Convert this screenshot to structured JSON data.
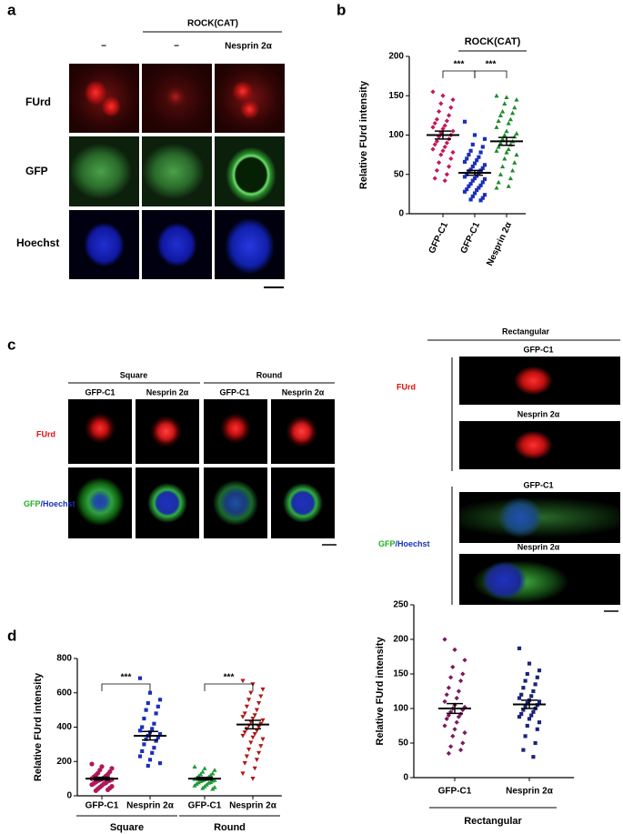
{
  "panel_letters": [
    "a",
    "b",
    "c",
    "d"
  ],
  "panel_a": {
    "group": "ROCK(CAT)",
    "col_headers": [
      "−",
      "−",
      "Nesprin 2α"
    ],
    "row_labels": [
      "FUrd",
      "GFP",
      "Hoechst"
    ]
  },
  "panel_c": {
    "groups": [
      "Square",
      "Round"
    ],
    "col_headers": [
      "GFP-C1",
      "Nesprin 2α",
      "GFP-C1",
      "Nesprin 2α"
    ],
    "row_labels": {
      "furd": "FUrd",
      "gfp": "GFP",
      "hoechst": "/Hoechst"
    },
    "rectangular": {
      "title": "Rectangular",
      "image_labels": [
        "GFP-C1",
        "Nesprin 2α",
        "GFP-C1",
        "Nesprin 2α"
      ],
      "row_labels": {
        "furd": "FUrd",
        "gfp": "GFP",
        "hoechst": "/Hoechst"
      }
    }
  },
  "chart_data": [
    {
      "type": "dotplot",
      "y_label": "Relative FUrd intensity",
      "group_label": "ROCK(CAT)",
      "annotations": [
        "***",
        "***"
      ],
      "ylim": [
        0,
        200
      ],
      "yticks": [
        0,
        50,
        100,
        150,
        200
      ],
      "series": [
        {
          "name": "GFP-C1",
          "color": "#c2185b",
          "marker": "diamond",
          "mean": 100,
          "sem": 5,
          "values": [
            155,
            150,
            145,
            140,
            135,
            130,
            125,
            120,
            118,
            115,
            112,
            110,
            108,
            105,
            103,
            100,
            98,
            95,
            92,
            90,
            88,
            85,
            82,
            80,
            78,
            75,
            70,
            65,
            60,
            55,
            50,
            45,
            42
          ]
        },
        {
          "name": "GFP-C1",
          "color": "#1a2fb8",
          "marker": "square",
          "mean": 52,
          "sem": 3,
          "values": [
            117,
            100,
            95,
            88,
            85,
            80,
            78,
            75,
            72,
            70,
            68,
            66,
            64,
            62,
            60,
            58,
            56,
            55,
            54,
            52,
            50,
            48,
            47,
            45,
            44,
            42,
            40,
            38,
            36,
            35,
            33,
            31,
            30,
            28,
            26,
            24,
            22,
            20,
            18,
            17
          ]
        },
        {
          "name": "Nesprin 2α",
          "color": "#1e8a2a",
          "marker": "triangle",
          "mean": 92,
          "sem": 5,
          "values": [
            150,
            148,
            145,
            140,
            135,
            130,
            128,
            125,
            120,
            118,
            115,
            110,
            105,
            102,
            100,
            98,
            95,
            92,
            90,
            88,
            85,
            82,
            80,
            78,
            75,
            70,
            65,
            60,
            55,
            50,
            45,
            40,
            35,
            33
          ]
        }
      ]
    },
    {
      "type": "dotplot",
      "y_label": "Relative FUrd intensity",
      "groups": [
        "Square",
        "Round"
      ],
      "annotations": [
        "***",
        "***"
      ],
      "ylim": [
        0,
        800
      ],
      "yticks": [
        0,
        200,
        400,
        600,
        800
      ],
      "series": [
        {
          "name": "GFP-C1",
          "color": "#b0185a",
          "marker": "circle",
          "mean": 100,
          "sem": 8,
          "values": [
            185,
            170,
            160,
            150,
            140,
            132,
            125,
            120,
            115,
            110,
            105,
            100,
            98,
            95,
            92,
            90,
            88,
            85,
            80,
            75,
            72,
            70,
            65,
            60,
            55,
            50,
            45,
            40,
            35,
            30
          ]
        },
        {
          "name": "Nesprin 2α",
          "color": "#1a2fb8",
          "marker": "square",
          "mean": 350,
          "sem": 25,
          "values": [
            685,
            600,
            560,
            540,
            520,
            500,
            480,
            450,
            420,
            400,
            390,
            380,
            370,
            360,
            350,
            340,
            330,
            320,
            300,
            280,
            260,
            250,
            230,
            210,
            190,
            175
          ]
        },
        {
          "name": "GFP-C1",
          "color": "#1e9a3a",
          "marker": "triangle",
          "mean": 100,
          "sem": 7,
          "values": [
            170,
            160,
            150,
            140,
            130,
            125,
            120,
            115,
            110,
            105,
            100,
            98,
            95,
            92,
            90,
            88,
            85,
            80,
            78,
            75,
            70,
            65,
            60,
            55,
            50,
            45,
            40
          ]
        },
        {
          "name": "Nesprin 2α",
          "color": "#b01818",
          "marker": "triangle-down",
          "mean": 415,
          "sem": 25,
          "values": [
            670,
            650,
            620,
            600,
            580,
            560,
            540,
            520,
            500,
            480,
            470,
            460,
            450,
            440,
            430,
            420,
            410,
            400,
            390,
            380,
            370,
            360,
            350,
            340,
            330,
            310,
            290,
            270,
            250,
            230,
            210,
            190,
            160,
            130,
            100
          ]
        }
      ]
    },
    {
      "type": "dotplot",
      "y_label": "Relative FUrd intensity",
      "groups": [
        "Rectangular"
      ],
      "ylim": [
        0,
        250
      ],
      "yticks": [
        0,
        50,
        100,
        150,
        200,
        250
      ],
      "series": [
        {
          "name": "GFP-C1",
          "color": "#7a1a5a",
          "marker": "diamond",
          "mean": 100,
          "sem": 7,
          "values": [
            200,
            185,
            170,
            160,
            150,
            145,
            140,
            130,
            125,
            120,
            115,
            110,
            105,
            102,
            100,
            98,
            95,
            92,
            90,
            88,
            85,
            80,
            75,
            70,
            65,
            60,
            50,
            45,
            40,
            35
          ]
        },
        {
          "name": "Nesprin 2α",
          "color": "#1a237e",
          "marker": "square",
          "mean": 106,
          "sem": 6,
          "values": [
            187,
            165,
            155,
            150,
            145,
            140,
            135,
            130,
            125,
            120,
            118,
            115,
            112,
            110,
            108,
            105,
            102,
            100,
            98,
            95,
            92,
            90,
            88,
            85,
            80,
            75,
            70,
            60,
            50,
            40,
            30
          ]
        }
      ]
    }
  ]
}
